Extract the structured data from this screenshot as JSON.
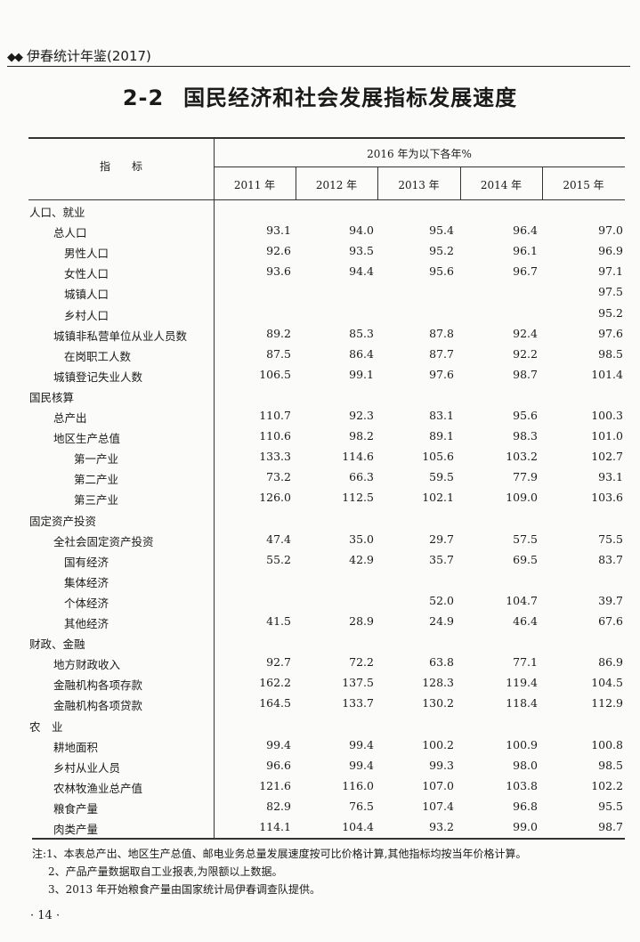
{
  "running_header": {
    "icon": "diamond-icon",
    "symbol": "◆◆",
    "text": "伊春统计年鉴(2017)"
  },
  "title": {
    "number": "2-2",
    "text": "国民经济和社会发展指标发展速度"
  },
  "table": {
    "indicator_header": "指　　标",
    "group_header": "2016 年为以下各年%",
    "columns": [
      "2011 年",
      "2012 年",
      "2013 年",
      "2014 年",
      "2015 年"
    ],
    "rows": [
      {
        "label": "人口、就业",
        "level": 0,
        "values": [
          "",
          "",
          "",
          "",
          ""
        ]
      },
      {
        "label": "总人口",
        "level": 1,
        "values": [
          "93.1",
          "94.0",
          "95.4",
          "96.4",
          "97.0"
        ]
      },
      {
        "label": "男性人口",
        "level": 2,
        "values": [
          "92.6",
          "93.5",
          "95.2",
          "96.1",
          "96.9"
        ]
      },
      {
        "label": "女性人口",
        "level": 2,
        "values": [
          "93.6",
          "94.4",
          "95.6",
          "96.7",
          "97.1"
        ]
      },
      {
        "label": "城镇人口",
        "level": 2,
        "values": [
          "",
          "",
          "",
          "",
          "97.5"
        ]
      },
      {
        "label": "乡村人口",
        "level": 2,
        "values": [
          "",
          "",
          "",
          "",
          "95.2"
        ]
      },
      {
        "label": "城镇非私营单位从业人员数",
        "level": 1,
        "values": [
          "89.2",
          "85.3",
          "87.8",
          "92.4",
          "97.6"
        ]
      },
      {
        "label": "在岗职工人数",
        "level": 2,
        "values": [
          "87.5",
          "86.4",
          "87.7",
          "92.2",
          "98.5"
        ]
      },
      {
        "label": "城镇登记失业人数",
        "level": 1,
        "values": [
          "106.5",
          "99.1",
          "97.6",
          "98.7",
          "101.4"
        ]
      },
      {
        "label": "国民核算",
        "level": 0,
        "values": [
          "",
          "",
          "",
          "",
          ""
        ]
      },
      {
        "label": "总产出",
        "level": 1,
        "values": [
          "110.7",
          "92.3",
          "83.1",
          "95.6",
          "100.3"
        ]
      },
      {
        "label": "地区生产总值",
        "level": 1,
        "values": [
          "110.6",
          "98.2",
          "89.1",
          "98.3",
          "101.0"
        ]
      },
      {
        "label": "第一产业",
        "level": 3,
        "values": [
          "133.3",
          "114.6",
          "105.6",
          "103.2",
          "102.7"
        ]
      },
      {
        "label": "第二产业",
        "level": 3,
        "values": [
          "73.2",
          "66.3",
          "59.5",
          "77.9",
          "93.1"
        ]
      },
      {
        "label": "第三产业",
        "level": 3,
        "values": [
          "126.0",
          "112.5",
          "102.1",
          "109.0",
          "103.6"
        ]
      },
      {
        "label": "固定资产投资",
        "level": 0,
        "values": [
          "",
          "",
          "",
          "",
          ""
        ]
      },
      {
        "label": "全社会固定资产投资",
        "level": 1,
        "values": [
          "47.4",
          "35.0",
          "29.7",
          "57.5",
          "75.5"
        ]
      },
      {
        "label": "国有经济",
        "level": 2,
        "values": [
          "55.2",
          "42.9",
          "35.7",
          "69.5",
          "83.7"
        ]
      },
      {
        "label": "集体经济",
        "level": 2,
        "values": [
          "",
          "",
          "",
          "",
          ""
        ]
      },
      {
        "label": "个体经济",
        "level": 2,
        "values": [
          "",
          "",
          "52.0",
          "104.7",
          "39.7"
        ]
      },
      {
        "label": "其他经济",
        "level": 2,
        "values": [
          "41.5",
          "28.9",
          "24.9",
          "46.4",
          "67.6"
        ]
      },
      {
        "label": "财政、金融",
        "level": 0,
        "values": [
          "",
          "",
          "",
          "",
          ""
        ]
      },
      {
        "label": "地方财政收入",
        "level": 1,
        "values": [
          "92.7",
          "72.2",
          "63.8",
          "77.1",
          "86.9"
        ]
      },
      {
        "label": "金融机构各项存款",
        "level": 1,
        "values": [
          "162.2",
          "137.5",
          "128.3",
          "119.4",
          "104.5"
        ]
      },
      {
        "label": "金融机构各项贷款",
        "level": 1,
        "values": [
          "164.5",
          "133.7",
          "130.2",
          "118.4",
          "112.9"
        ]
      },
      {
        "label": "农　业",
        "level": 0,
        "values": [
          "",
          "",
          "",
          "",
          ""
        ]
      },
      {
        "label": "耕地面积",
        "level": 1,
        "values": [
          "99.4",
          "99.4",
          "100.2",
          "100.9",
          "100.8"
        ]
      },
      {
        "label": "乡村从业人员",
        "level": 1,
        "values": [
          "96.6",
          "99.4",
          "99.3",
          "98.0",
          "98.5"
        ]
      },
      {
        "label": "农林牧渔业总产值",
        "level": 1,
        "values": [
          "121.6",
          "116.0",
          "107.0",
          "103.8",
          "102.2"
        ]
      },
      {
        "label": "粮食产量",
        "level": 1,
        "values": [
          "82.9",
          "76.5",
          "107.4",
          "96.8",
          "95.5"
        ]
      },
      {
        "label": "肉类产量",
        "level": 1,
        "values": [
          "114.1",
          "104.4",
          "93.2",
          "99.0",
          "98.7"
        ]
      }
    ]
  },
  "notes": [
    "注:1、本表总产出、地区生产总值、邮电业务总量发展速度按可比价格计算,其他指标均按当年价格计算。",
    "2、产品产量数据取自工业报表,为限额以上数据。",
    "3、2013 年开始粮食产量由国家统计局伊春调查队提供。"
  ],
  "page_number": "· 14 ·"
}
